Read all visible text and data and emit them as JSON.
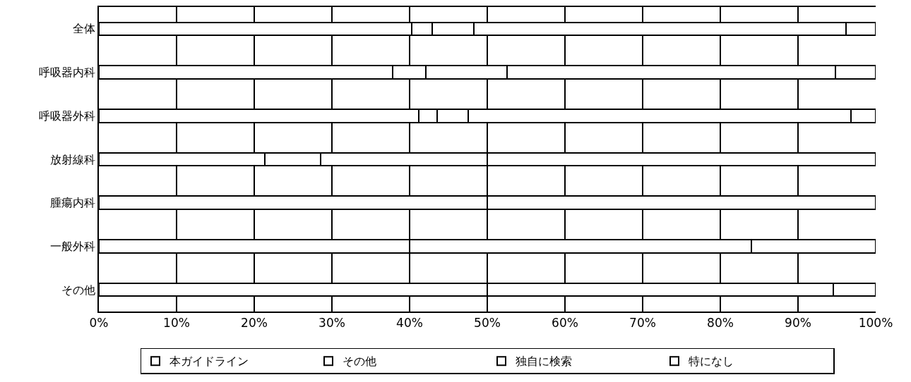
{
  "chart_data": {
    "type": "bar",
    "orientation": "horizontal",
    "stacked": true,
    "categories": [
      "全体",
      "呼吸器内科",
      "呼吸器外科",
      "放射線科",
      "腫瘍内科",
      "一般外科",
      "その他"
    ],
    "series": [
      {
        "name": "本ガイドライン",
        "color": "#ffffff",
        "values": [
          40.3,
          37.8,
          41.2,
          21.4,
          50,
          40,
          50
        ]
      },
      {
        "color": "#ffffff",
        "values": [
          2.6,
          4.3,
          2.3,
          7.1,
          0,
          0,
          0
        ]
      },
      {
        "name": "その他",
        "color": "#ffffff",
        "values": [
          5.4,
          10.4,
          4.0,
          21.5,
          0,
          0,
          0
        ]
      },
      {
        "name": "独自に検索",
        "color": "#ffffff",
        "values": [
          47.9,
          42.3,
          49.3,
          50,
          50,
          44,
          44.5
        ]
      },
      {
        "name": "特になし",
        "color": "#ffffff",
        "values": [
          3.8,
          5.2,
          3.2,
          0,
          0,
          16,
          5.5
        ]
      }
    ],
    "xlim": [
      0,
      100
    ],
    "xticks": [
      {
        "value": 0,
        "label": "0%"
      },
      {
        "value": 10,
        "label": "10%"
      },
      {
        "value": 20,
        "label": "20%"
      },
      {
        "value": 30,
        "label": "30%"
      },
      {
        "value": 40,
        "label": "40%"
      },
      {
        "value": 50,
        "label": "50%"
      },
      {
        "value": 60,
        "label": "60%"
      },
      {
        "value": 70,
        "label": "70%"
      },
      {
        "value": 80,
        "label": "80%"
      },
      {
        "value": 90,
        "label": "90%"
      },
      {
        "value": 100,
        "label": "100%"
      }
    ],
    "grid": "x",
    "legend": "bottom"
  }
}
